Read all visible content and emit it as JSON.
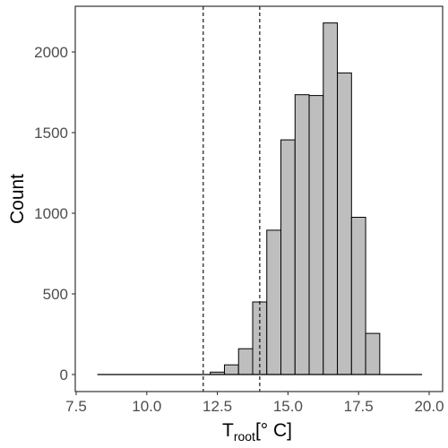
{
  "chart_data": {
    "type": "bar",
    "subtype": "histogram",
    "title": "",
    "xlabel": {
      "base": "T",
      "subscript": "root",
      "suffix": "[° C]"
    },
    "ylabel": "Count",
    "xlim": [
      7.5,
      20.0
    ],
    "ylim": [
      0,
      2200
    ],
    "x_ticks": [
      7.5,
      10.0,
      12.5,
      15.0,
      17.5,
      20.0
    ],
    "x_tick_labels": [
      "7.5",
      "10.0",
      "12.5",
      "15.0",
      "17.5",
      "20.0"
    ],
    "y_ticks": [
      0,
      500,
      1000,
      1500,
      2000
    ],
    "y_tick_labels": [
      "0",
      "500",
      "1000",
      "1500",
      "2000"
    ],
    "bin_range": [
      8.25,
      19.75
    ],
    "bin_width": 0.5,
    "bins": [
      {
        "start": 12.25,
        "end": 12.75,
        "count": 15
      },
      {
        "start": 12.75,
        "end": 13.25,
        "count": 60
      },
      {
        "start": 13.25,
        "end": 13.75,
        "count": 160
      },
      {
        "start": 13.75,
        "end": 14.25,
        "count": 450
      },
      {
        "start": 14.25,
        "end": 14.75,
        "count": 895
      },
      {
        "start": 14.75,
        "end": 15.25,
        "count": 1455
      },
      {
        "start": 15.25,
        "end": 15.75,
        "count": 1735
      },
      {
        "start": 15.75,
        "end": 16.25,
        "count": 1730
      },
      {
        "start": 16.25,
        "end": 16.75,
        "count": 2180
      },
      {
        "start": 16.75,
        "end": 17.25,
        "count": 1870
      },
      {
        "start": 17.25,
        "end": 17.75,
        "count": 975
      },
      {
        "start": 17.75,
        "end": 18.25,
        "count": 255
      }
    ],
    "reference_lines": [
      12.0,
      14.0
    ],
    "reference_line_style": "dashed",
    "grid": false,
    "legend": "none",
    "bar_fill": "#bebebe",
    "bar_stroke": "#000000"
  }
}
